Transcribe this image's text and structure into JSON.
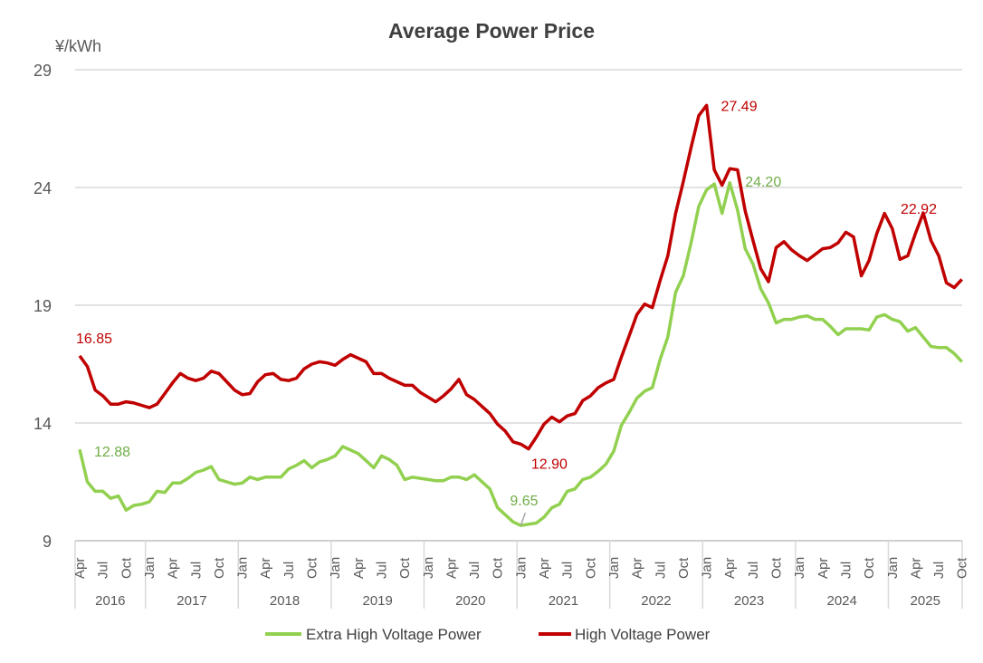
{
  "chart_data": {
    "type": "line",
    "title": "Average Power Price",
    "ylabel": "¥/kWh",
    "xlabel": "",
    "x_range": [
      "2016-04",
      "2025-10"
    ],
    "month_tick_labels": {
      "1": "Jan",
      "4": "Apr",
      "7": "Jul",
      "10": "Oct"
    },
    "year_labels": [
      "2016",
      "2017",
      "2018",
      "2019",
      "2020",
      "2021",
      "2022",
      "2023",
      "2024",
      "2025"
    ],
    "ylim": [
      9,
      29
    ],
    "yticks": [
      9,
      14,
      19,
      24,
      29
    ],
    "grid": "horizontal",
    "legend_position": "bottom",
    "series": [
      {
        "name": "Extra High Voltage Power",
        "color": "#92D050",
        "values": [
          12.88,
          11.5,
          11.1,
          11.1,
          10.8,
          10.9,
          10.3,
          10.5,
          10.55,
          10.65,
          11.1,
          11.05,
          11.45,
          11.45,
          11.65,
          11.9,
          12.0,
          12.15,
          11.6,
          11.5,
          11.4,
          11.45,
          11.7,
          11.6,
          11.7,
          11.7,
          11.7,
          12.05,
          12.2,
          12.4,
          12.1,
          12.35,
          12.45,
          12.6,
          13.0,
          12.85,
          12.7,
          12.4,
          12.1,
          12.6,
          12.45,
          12.2,
          11.6,
          11.7,
          11.65,
          11.6,
          11.55,
          11.55,
          11.7,
          11.7,
          11.6,
          11.8,
          11.5,
          11.2,
          10.4,
          10.1,
          9.8,
          9.65,
          9.7,
          9.75,
          10.0,
          10.4,
          10.55,
          11.1,
          11.2,
          11.6,
          11.7,
          11.95,
          12.25,
          12.8,
          13.9,
          14.45,
          15.05,
          15.35,
          15.5,
          16.7,
          17.65,
          19.55,
          20.25,
          21.65,
          23.2,
          23.9,
          24.15,
          22.9,
          24.2,
          23.05,
          21.4,
          20.75,
          19.7,
          19.1,
          18.25,
          18.4,
          18.4,
          18.5,
          18.55,
          18.4,
          18.4,
          18.1,
          17.75,
          18.0,
          18.0,
          18.0,
          17.95,
          18.5,
          18.6,
          18.4,
          18.3,
          17.9,
          18.05,
          17.65,
          17.25,
          17.2,
          17.2,
          16.95,
          16.6
        ],
        "annotations": [
          {
            "index": 0,
            "label": "12.88"
          },
          {
            "index": 57,
            "label": "9.65"
          },
          {
            "index": 84,
            "label": "24.20"
          }
        ]
      },
      {
        "name": "High Voltage Power",
        "color": "#C00000",
        "values": [
          16.85,
          16.4,
          15.4,
          15.15,
          14.8,
          14.8,
          14.9,
          14.85,
          14.75,
          14.65,
          14.8,
          15.25,
          15.7,
          16.1,
          15.9,
          15.8,
          15.9,
          16.2,
          16.1,
          15.75,
          15.4,
          15.2,
          15.25,
          15.75,
          16.05,
          16.1,
          15.85,
          15.8,
          15.9,
          16.3,
          16.5,
          16.6,
          16.55,
          16.45,
          16.7,
          16.9,
          16.75,
          16.6,
          16.1,
          16.1,
          15.9,
          15.75,
          15.6,
          15.6,
          15.3,
          15.1,
          14.9,
          15.15,
          15.45,
          15.85,
          15.2,
          15.0,
          14.7,
          14.4,
          13.95,
          13.65,
          13.2,
          13.1,
          12.9,
          13.4,
          13.95,
          14.25,
          14.05,
          14.3,
          14.4,
          14.95,
          15.15,
          15.5,
          15.7,
          15.85,
          16.8,
          17.7,
          18.6,
          19.05,
          18.9,
          20.05,
          21.1,
          22.9,
          24.25,
          25.7,
          27.05,
          27.49,
          24.75,
          24.1,
          24.8,
          24.75,
          23.0,
          21.75,
          20.55,
          20.0,
          21.45,
          21.7,
          21.35,
          21.1,
          20.9,
          21.15,
          21.4,
          21.45,
          21.65,
          22.1,
          21.9,
          20.25,
          20.9,
          22.05,
          22.9,
          22.25,
          20.95,
          21.1,
          22.05,
          22.92,
          21.75,
          21.1,
          19.95,
          19.75,
          20.1
        ],
        "annotations": [
          {
            "index": 0,
            "label": "16.85"
          },
          {
            "index": 58,
            "label": "12.90"
          },
          {
            "index": 81,
            "label": "27.49"
          },
          {
            "index": 109,
            "label": "22.92"
          }
        ]
      }
    ]
  }
}
